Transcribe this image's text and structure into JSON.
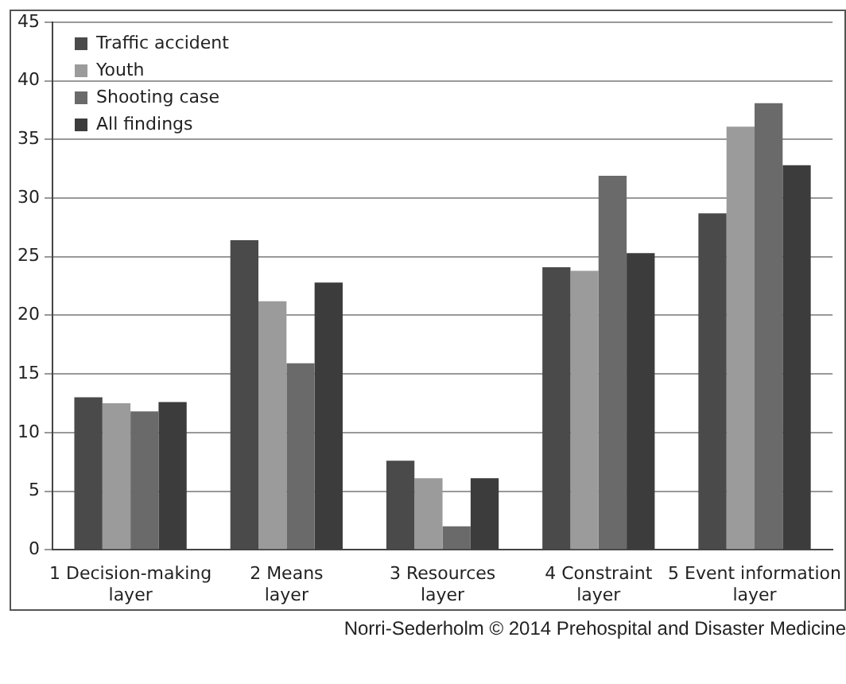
{
  "chart_data": {
    "type": "bar",
    "categories": [
      "1 Decision-making\nlayer",
      "2 Means\nlayer",
      "3 Resources\nlayer",
      "4 Constraint\nlayer",
      "5 Event information\nlayer"
    ],
    "series": [
      {
        "name": "Traffic accident",
        "color": "#4a4a4a",
        "values": [
          13.0,
          26.4,
          7.6,
          24.1,
          28.7
        ]
      },
      {
        "name": "Youth",
        "color": "#9b9b9b",
        "values": [
          12.5,
          21.2,
          6.1,
          23.8,
          36.1
        ]
      },
      {
        "name": "Shooting case",
        "color": "#6a6a6a",
        "values": [
          11.8,
          15.9,
          2.0,
          31.9,
          38.1
        ]
      },
      {
        "name": "All findings",
        "color": "#3c3c3c",
        "values": [
          12.6,
          22.8,
          6.1,
          25.3,
          32.8
        ]
      }
    ],
    "ylim": [
      0,
      45
    ],
    "yticks": [
      0,
      5,
      10,
      15,
      20,
      25,
      30,
      35,
      40,
      45
    ],
    "grid": "y",
    "legend": "top left",
    "annotations": [
      "Norri-Sederholm © 2014 Prehospital and Disaster Medicine"
    ]
  }
}
